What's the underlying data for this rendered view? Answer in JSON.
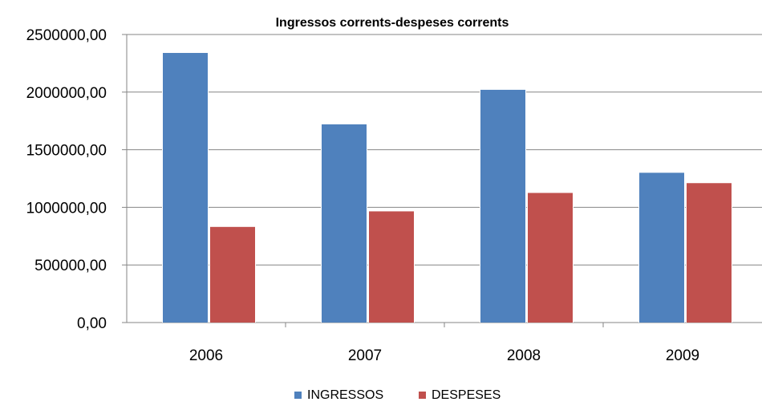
{
  "chart_data": {
    "type": "bar",
    "title": "Ingressos corrents-despeses corrents",
    "categories": [
      "2006",
      "2007",
      "2008",
      "2009"
    ],
    "series": [
      {
        "name": "INGRESSOS",
        "color": "#4F81BD",
        "values": [
          2340000,
          1720000,
          2020000,
          1300000
        ]
      },
      {
        "name": "DESPESES",
        "color": "#C0504D",
        "values": [
          830000,
          965000,
          1125000,
          1210000
        ]
      }
    ],
    "y_ticks": [
      0,
      500000,
      1000000,
      1500000,
      2000000,
      2500000
    ],
    "y_tick_labels": [
      "0,00",
      "500000,00",
      "1000000,00",
      "1500000,00",
      "2000000,00",
      "2500000,00"
    ],
    "ylim": [
      0,
      2500000
    ],
    "grid": true,
    "legend_position": "bottom"
  }
}
